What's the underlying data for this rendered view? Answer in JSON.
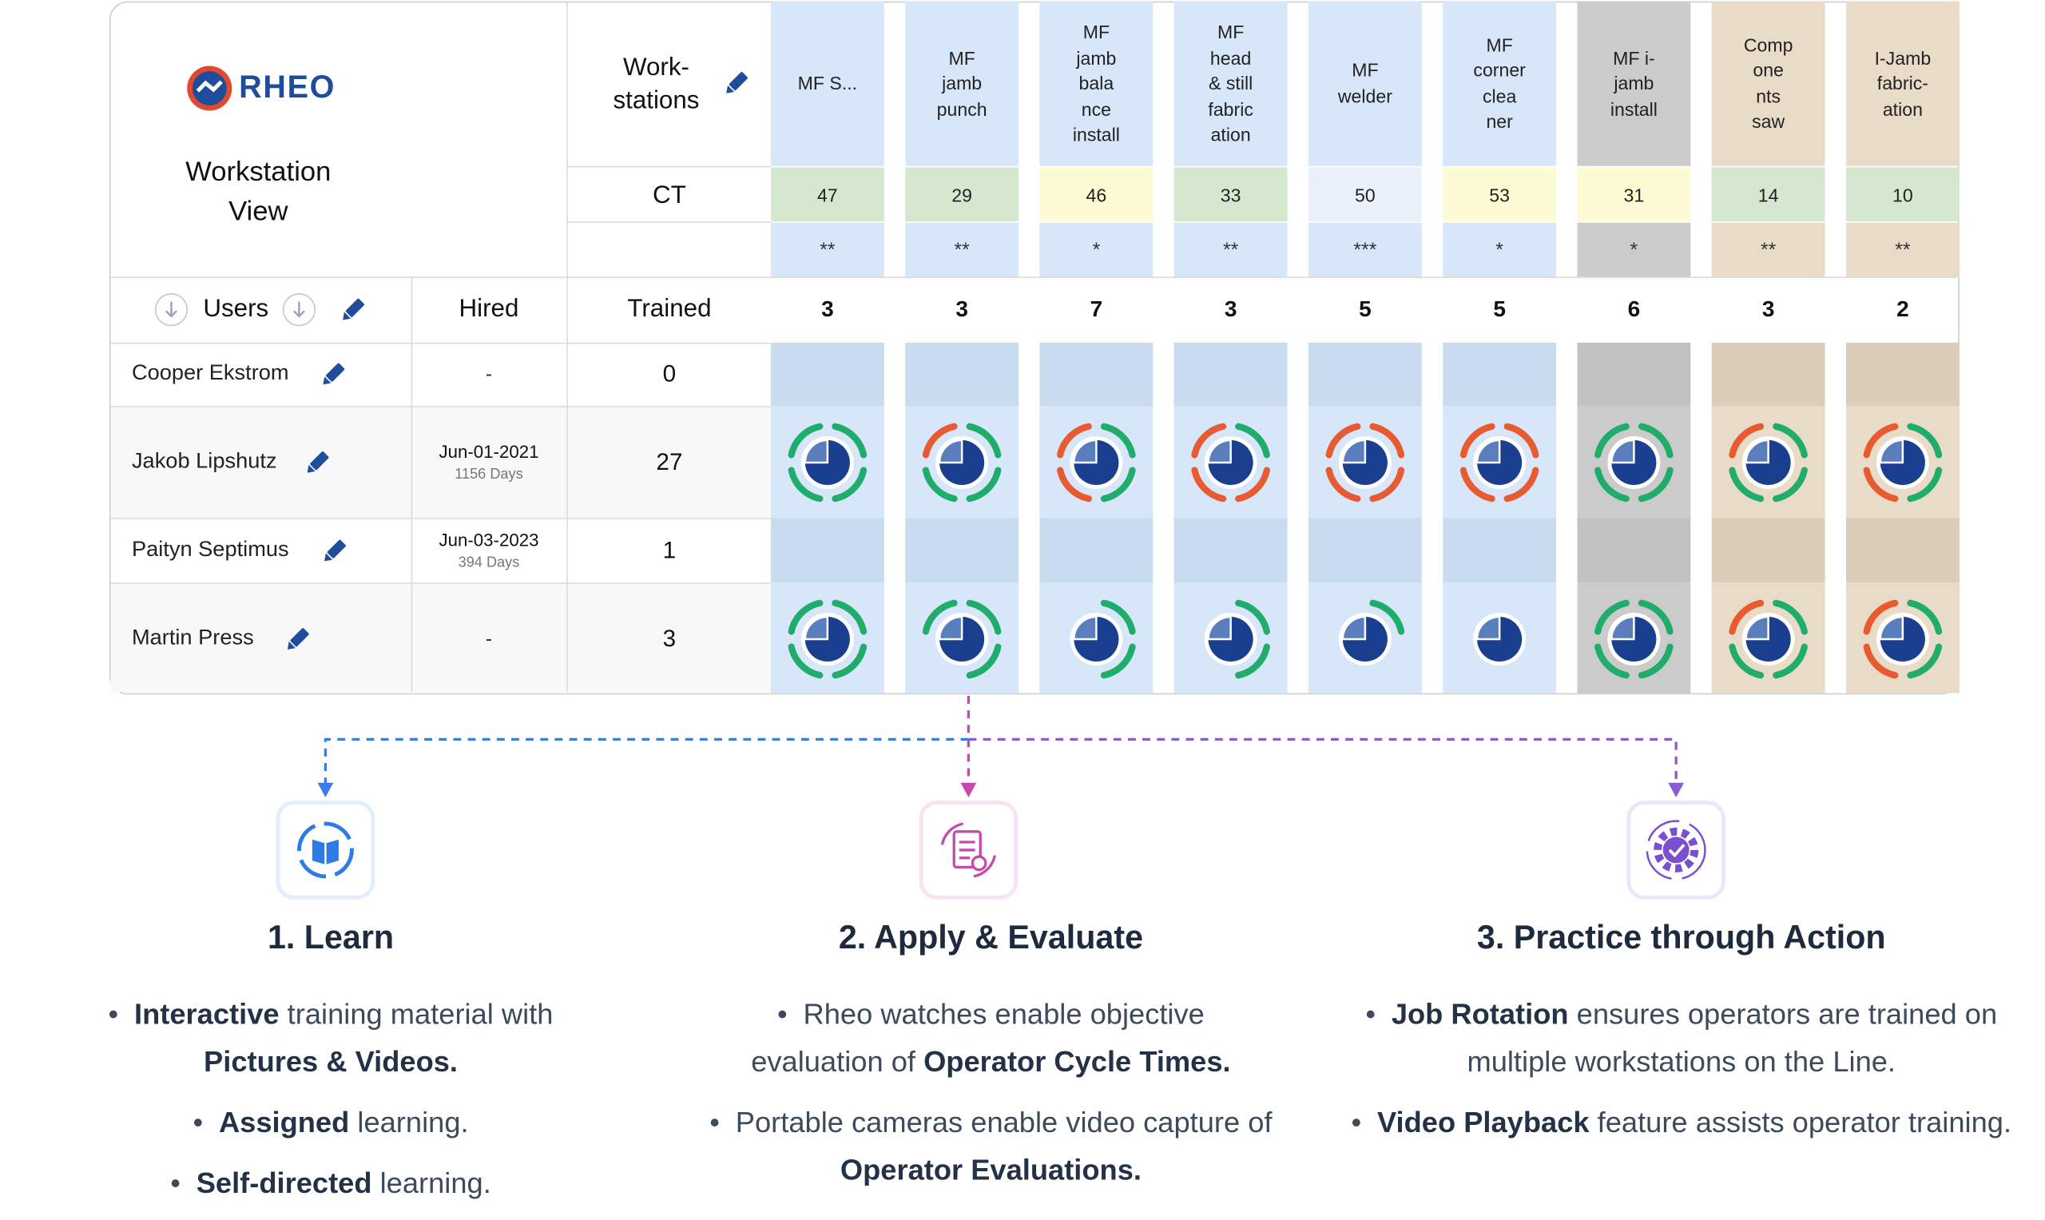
{
  "table": {
    "logo": "RHEO",
    "title": [
      "Workstation",
      "View"
    ],
    "workstations_label": [
      "Work-",
      "stations"
    ],
    "ct_label": "CT",
    "columns": {
      "users": "Users",
      "hired": "Hired",
      "trained": "Trained"
    },
    "users": [
      {
        "name": "Cooper Ekstrom",
        "hired": "-",
        "trained": "0"
      },
      {
        "name": "Jakob Lipshutz",
        "hired": "Jun-01-2021",
        "days": "1156 Days",
        "trained": "27"
      },
      {
        "name": "Paityn Septimus",
        "hired": "Jun-03-2023",
        "days": "394 Days",
        "trained": "1"
      },
      {
        "name": "Martin Press",
        "hired": "-",
        "trained": "3"
      }
    ],
    "workstations": [
      {
        "name": [
          "MF S..."
        ],
        "ct": "47",
        "ct_color": "#d5e8cf",
        "stars": "**",
        "trained": "3",
        "color": "#d7e7f9",
        "band": "#c9dbef",
        "status": [
          null,
          [
            "green",
            "green",
            "green",
            "green"
          ],
          null,
          [
            "green",
            "green",
            "green",
            "green"
          ]
        ]
      },
      {
        "name": [
          "MF",
          "jamb",
          "punch"
        ],
        "ct": "29",
        "ct_color": "#d5e8cf",
        "stars": "**",
        "trained": "3",
        "color": "#d7e7f9",
        "band": "#c9dbef",
        "status": [
          null,
          [
            "green",
            "green",
            "green",
            "orange"
          ],
          null,
          [
            "green",
            "green",
            null,
            "green"
          ]
        ]
      },
      {
        "name": [
          "MF",
          "jamb",
          "bala",
          "nce",
          "install"
        ],
        "ct": "46",
        "ct_color": "#fdfbd3",
        "stars": "*",
        "trained": "7",
        "color": "#d7e7f9",
        "band": "#c9dbef",
        "status": [
          null,
          [
            "green",
            "green",
            "orange",
            "orange"
          ],
          null,
          [
            "green",
            "green",
            null,
            null
          ]
        ]
      },
      {
        "name": [
          "MF",
          "head",
          "& still",
          "fabric",
          "ation"
        ],
        "ct": "33",
        "ct_color": "#d5e8cf",
        "stars": "**",
        "trained": "3",
        "color": "#d7e7f9",
        "band": "#c9dbef",
        "status": [
          null,
          [
            "green",
            "orange",
            "orange",
            "orange"
          ],
          null,
          [
            "green",
            "green",
            null,
            null
          ]
        ]
      },
      {
        "name": [
          "MF",
          "welder"
        ],
        "ct": "50",
        "ct_color": "#eaf1fa",
        "stars": "***",
        "trained": "5",
        "color": "#d7e7f9",
        "band": "#c9dbef",
        "status": [
          null,
          [
            "orange",
            "orange",
            "orange",
            "orange"
          ],
          null,
          [
            "green",
            null,
            null,
            null
          ]
        ]
      },
      {
        "name": [
          "MF",
          "corner",
          "clea",
          "ner"
        ],
        "ct": "53",
        "ct_color": "#fdfbd3",
        "stars": "*",
        "trained": "5",
        "color": "#d7e7f9",
        "band": "#c9dbef",
        "status": [
          null,
          [
            "orange",
            "orange",
            "orange",
            "orange"
          ],
          null,
          [
            null,
            null,
            null,
            null
          ]
        ]
      },
      {
        "name": [
          "MF i-",
          "jamb",
          "install"
        ],
        "ct": "31",
        "ct_color": "#fdfbd3",
        "stars": "*",
        "trained": "6",
        "color": "#cbcbcb",
        "band": "#c2c2c2",
        "status": [
          null,
          [
            "green",
            "green",
            "green",
            "green"
          ],
          null,
          [
            "green",
            "green",
            "green",
            "green"
          ]
        ]
      },
      {
        "name": [
          "Comp",
          "one",
          "nts",
          "saw"
        ],
        "ct": "14",
        "ct_color": "#d5e8cf",
        "stars": "**",
        "trained": "3",
        "color": "#e8dbc8",
        "band": "#dccdb8",
        "status": [
          null,
          [
            "green",
            "green",
            "green",
            "orange"
          ],
          null,
          [
            "green",
            "green",
            "green",
            "orange"
          ]
        ]
      },
      {
        "name": [
          "I-Jamb",
          "fabric-",
          "ation"
        ],
        "ct": "10",
        "ct_color": "#d5e8cf",
        "stars": "**",
        "trained": "2",
        "color": "#e8dbc8",
        "band": "#dccdb8",
        "status": [
          null,
          [
            "green",
            "green",
            "orange",
            "orange"
          ],
          null,
          [
            "green",
            "green",
            "orange",
            "orange"
          ]
        ]
      }
    ]
  },
  "steps": [
    {
      "title": "1. Learn",
      "bullets": [
        [
          {
            "text": "Interactive",
            "bold": true
          },
          {
            "text": " training material with "
          },
          {
            "text": "Pictures & Videos.",
            "bold": true
          }
        ],
        [
          {
            "text": "Assigned",
            "bold": true
          },
          {
            "text": " learning."
          }
        ],
        [
          {
            "text": "Self-directed",
            "bold": true
          },
          {
            "text": " learning."
          }
        ]
      ]
    },
    {
      "title": "2. Apply & Evaluate",
      "bullets": [
        [
          {
            "text": "Rheo watches enable objective evaluation of "
          },
          {
            "text": "Operator Cycle Times.",
            "bold": true
          }
        ],
        [
          {
            "text": "Portable cameras enable video capture of "
          },
          {
            "text": "Operator Evaluations.",
            "bold": true
          }
        ]
      ]
    },
    {
      "title": "3. Practice through Action",
      "bullets": [
        [
          {
            "text": "Job Rotation",
            "bold": true
          },
          {
            "text": " ensures operators are trained on multiple workstations on the Line."
          }
        ],
        [
          {
            "text": "Video Playback",
            "bold": true
          },
          {
            "text": " feature assists operator training."
          }
        ]
      ]
    }
  ]
}
